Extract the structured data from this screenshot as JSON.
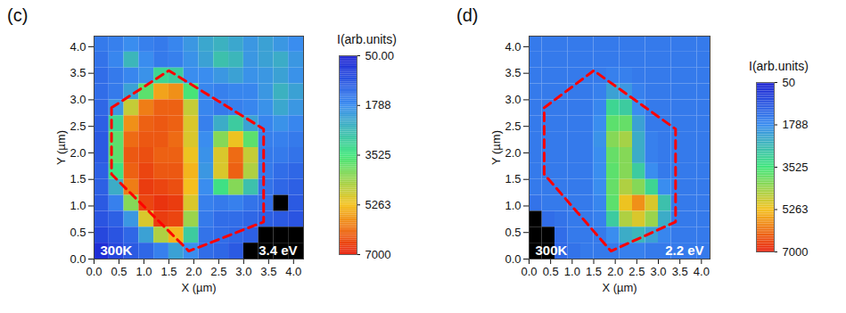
{
  "chart_data": [
    {
      "type": "heatmap",
      "panel_label": "(c)",
      "annotations": [
        "300K",
        "3.4 eV"
      ],
      "x_label": "X (µm)",
      "y_label": "Y (µm)",
      "xlim": [
        0,
        4.2
      ],
      "ylim": [
        0,
        4.2
      ],
      "xticks": [
        {
          "value": 0,
          "label": "0.0"
        },
        {
          "value": 0.5,
          "label": "0.5"
        },
        {
          "value": 1,
          "label": "1.0"
        },
        {
          "value": 1.5,
          "label": "1.5"
        },
        {
          "value": 2,
          "label": "2.0"
        },
        {
          "value": 2.5,
          "label": "2.5"
        },
        {
          "value": 3,
          "label": "3.0"
        },
        {
          "value": 3.5,
          "label": "3.5"
        },
        {
          "value": 4,
          "label": "4.0"
        }
      ],
      "yticks": [
        {
          "value": 0,
          "label": "0.0"
        },
        {
          "value": 0.5,
          "label": "0.5"
        },
        {
          "value": 1,
          "label": "1.0"
        },
        {
          "value": 1.5,
          "label": "1.5"
        },
        {
          "value": 2,
          "label": "2.0"
        },
        {
          "value": 2.5,
          "label": "2.5"
        },
        {
          "value": 3,
          "label": "3.0"
        },
        {
          "value": 3.5,
          "label": "3.5"
        },
        {
          "value": 4,
          "label": "4.0"
        }
      ],
      "x": [
        0.15,
        0.45,
        0.75,
        1.05,
        1.35,
        1.65,
        1.95,
        2.25,
        2.55,
        2.85,
        3.15,
        3.45,
        3.75,
        4.05
      ],
      "y": [
        4.05,
        3.75,
        3.45,
        3.15,
        2.85,
        2.55,
        2.25,
        1.95,
        1.65,
        1.35,
        1.05,
        0.75,
        0.45,
        0.15
      ],
      "z": [
        [
          1500,
          1600,
          1800,
          1600,
          1500,
          1700,
          2000,
          2300,
          2500,
          2300,
          2000,
          2200,
          2000,
          1800
        ],
        [
          1400,
          1700,
          2600,
          1800,
          1500,
          1600,
          1900,
          2200,
          2800,
          2600,
          2000,
          2200,
          2400,
          2000
        ],
        [
          1300,
          1500,
          1700,
          1900,
          3200,
          3000,
          1800,
          1800,
          2000,
          2200,
          1900,
          2000,
          2200,
          1900
        ],
        [
          1300,
          1500,
          2200,
          3800,
          5600,
          5800,
          3600,
          1700,
          1600,
          1700,
          1700,
          2000,
          2500,
          2200
        ],
        [
          1200,
          2000,
          4800,
          6000,
          6300,
          6300,
          4800,
          1700,
          1500,
          1600,
          1700,
          1900,
          2300,
          2000
        ],
        [
          1100,
          3200,
          5800,
          6300,
          6400,
          6300,
          5000,
          1600,
          2400,
          3000,
          2200,
          1700,
          1900,
          1700
        ],
        [
          1000,
          3800,
          6200,
          6400,
          6400,
          6200,
          5000,
          1800,
          4200,
          5200,
          3800,
          1600,
          1600,
          1500
        ],
        [
          1000,
          3800,
          6400,
          6500,
          6300,
          6300,
          5200,
          1900,
          5000,
          6200,
          4800,
          1500,
          1500,
          1400
        ],
        [
          1100,
          3400,
          6300,
          6600,
          6400,
          6400,
          5400,
          2000,
          5000,
          6300,
          4600,
          1500,
          1300,
          1200
        ],
        [
          1100,
          2400,
          6000,
          6700,
          6600,
          6500,
          5300,
          1800,
          3400,
          4200,
          2800,
          1400,
          1200,
          1100
        ],
        [
          1000,
          1600,
          4200,
          6600,
          6800,
          6700,
          5000,
          1600,
          1500,
          1600,
          1400,
          1300,
          null,
          1000
        ],
        [
          900,
          1100,
          2000,
          5000,
          6700,
          6600,
          4400,
          1500,
          1300,
          1300,
          1200,
          1100,
          1000,
          900
        ],
        [
          700,
          900,
          1200,
          2200,
          4600,
          5400,
          3000,
          1400,
          1300,
          1200,
          1100,
          null,
          null,
          null
        ],
        [
          300,
          700,
          1000,
          1200,
          1600,
          2200,
          1800,
          1300,
          1200,
          1000,
          null,
          null,
          null,
          null
        ]
      ],
      "colorbar": {
        "label": "I(arb.units)",
        "range": [
          50,
          7000
        ],
        "ticks": [
          {
            "value": 50,
            "label": "50.00"
          },
          1788,
          3525,
          5263,
          7000
        ]
      },
      "outline": {
        "x": [
          0.35,
          1.5,
          3.4,
          3.4,
          1.9,
          0.35
        ],
        "y": [
          2.85,
          3.55,
          2.45,
          0.7,
          0.15,
          1.6
        ],
        "color": "red",
        "line_style": "dashed"
      }
    },
    {
      "type": "heatmap",
      "panel_label": "(d)",
      "annotations": [
        "300K",
        "2.2 eV"
      ],
      "x_label": "X (µm)",
      "y_label": "Y (µm)",
      "xlim": [
        0,
        4.2
      ],
      "ylim": [
        0,
        4.2
      ],
      "xticks": [
        {
          "value": 0,
          "label": "0.0"
        },
        {
          "value": 0.5,
          "label": "0.5"
        },
        {
          "value": 1,
          "label": "1.0"
        },
        {
          "value": 1.5,
          "label": "1.5"
        },
        {
          "value": 2,
          "label": "2.0"
        },
        {
          "value": 2.5,
          "label": "2.5"
        },
        {
          "value": 3,
          "label": "3.0"
        },
        {
          "value": 3.5,
          "label": "3.5"
        },
        {
          "value": 4,
          "label": "4.0"
        }
      ],
      "yticks": [
        {
          "value": 0,
          "label": "0.0"
        },
        {
          "value": 0.5,
          "label": "0.5"
        },
        {
          "value": 1,
          "label": "1.0"
        },
        {
          "value": 1.5,
          "label": "1.5"
        },
        {
          "value": 2,
          "label": "2.0"
        },
        {
          "value": 2.5,
          "label": "2.5"
        },
        {
          "value": 3,
          "label": "3.0"
        },
        {
          "value": 3.5,
          "label": "3.5"
        },
        {
          "value": 4,
          "label": "4.0"
        }
      ],
      "x": [
        0.15,
        0.45,
        0.75,
        1.05,
        1.35,
        1.65,
        1.95,
        2.25,
        2.55,
        2.85,
        3.15,
        3.45,
        3.75,
        4.05
      ],
      "y": [
        4.05,
        3.75,
        3.45,
        3.15,
        2.85,
        2.55,
        2.25,
        1.95,
        1.65,
        1.35,
        1.05,
        0.75,
        0.45,
        0.15
      ],
      "z": [
        [
          1500,
          1500,
          1500,
          1500,
          1500,
          1500,
          1500,
          1500,
          1500,
          1500,
          1500,
          1500,
          1500,
          1500
        ],
        [
          1500,
          1500,
          1500,
          1500,
          1500,
          1500,
          1500,
          1500,
          1500,
          1500,
          1500,
          1500,
          1500,
          1500
        ],
        [
          1500,
          1500,
          1500,
          1500,
          1500,
          1500,
          1600,
          1600,
          1500,
          1500,
          1500,
          1500,
          1500,
          1500
        ],
        [
          1500,
          1500,
          1500,
          1500,
          1500,
          1600,
          2200,
          2000,
          1600,
          1500,
          1500,
          1500,
          1500,
          1500
        ],
        [
          1500,
          1500,
          1500,
          1500,
          1500,
          1700,
          3200,
          3000,
          1800,
          1500,
          1500,
          1500,
          1500,
          1500
        ],
        [
          1500,
          1500,
          1500,
          1500,
          1500,
          1800,
          3800,
          3900,
          2200,
          1500,
          1500,
          1500,
          1500,
          1500
        ],
        [
          1500,
          1500,
          1500,
          1500,
          1500,
          1900,
          4200,
          4500,
          2400,
          1600,
          1500,
          1500,
          1500,
          1500
        ],
        [
          1500,
          1500,
          1500,
          1500,
          1500,
          1800,
          3900,
          4200,
          2400,
          1600,
          1500,
          1500,
          1500,
          1500
        ],
        [
          1500,
          1500,
          1500,
          1500,
          1500,
          1800,
          3800,
          4200,
          3000,
          1800,
          1500,
          1500,
          1500,
          1500
        ],
        [
          1500,
          1500,
          1500,
          1500,
          1500,
          1800,
          3900,
          4600,
          4200,
          3200,
          1800,
          1500,
          1500,
          1500
        ],
        [
          1400,
          1500,
          1500,
          1500,
          1500,
          1700,
          3800,
          5200,
          5800,
          5000,
          2800,
          1500,
          1500,
          1500
        ],
        [
          null,
          1300,
          1400,
          1500,
          1500,
          1600,
          3000,
          4600,
          5000,
          4400,
          2400,
          1500,
          1500,
          1500
        ],
        [
          null,
          null,
          1300,
          1500,
          1500,
          1500,
          1800,
          2400,
          2600,
          2200,
          1700,
          1500,
          1500,
          1500
        ],
        [
          null,
          null,
          1200,
          1400,
          1500,
          1500,
          1500,
          1600,
          1600,
          1500,
          1500,
          1500,
          1500,
          1500
        ]
      ],
      "colorbar": {
        "label": "I(arb.units)",
        "range": [
          50,
          7000
        ],
        "ticks": [
          50,
          1788,
          3525,
          5263,
          7000
        ]
      },
      "outline": {
        "x": [
          0.35,
          1.5,
          3.4,
          3.4,
          1.9,
          0.35
        ],
        "y": [
          2.85,
          3.55,
          2.45,
          0.7,
          0.15,
          1.6
        ],
        "color": "red",
        "line_style": "dashed"
      }
    }
  ]
}
